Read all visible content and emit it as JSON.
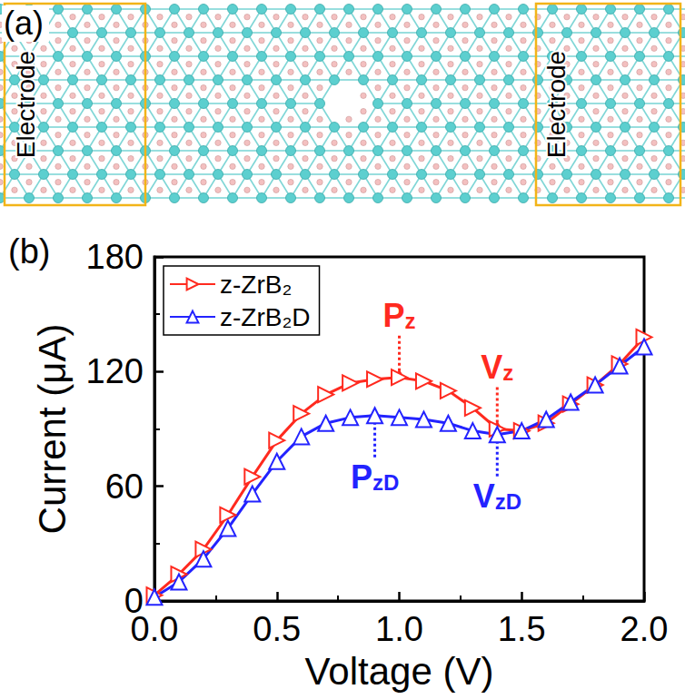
{
  "panel_a": {
    "label": "(a)",
    "electrode_labels": [
      "Electrode",
      "Electrode"
    ]
  },
  "chart_data": {
    "type": "line",
    "title": "(b)",
    "x_label": "Voltage (V)",
    "y_label": "Current (μA)",
    "x": [
      0.0,
      0.1,
      0.2,
      0.3,
      0.4,
      0.5,
      0.6,
      0.7,
      0.8,
      0.9,
      1.0,
      1.1,
      1.2,
      1.3,
      1.4,
      1.5,
      1.6,
      1.7,
      1.8,
      1.9,
      2.0
    ],
    "series": [
      {
        "name": "z-ZrB₂",
        "color": "#ff2a1f",
        "marker": "triangle_right",
        "values": [
          3,
          14,
          27,
          45,
          65,
          84,
          98,
          108,
          114,
          116,
          117,
          115,
          110,
          101,
          90,
          89,
          93,
          103,
          113,
          124,
          138
        ]
      },
      {
        "name": "z-ZrB₂D",
        "color": "#2323ff",
        "marker": "triangle_up",
        "values": [
          2,
          10,
          22,
          38,
          56,
          73,
          86,
          93,
          96,
          97,
          96,
          95,
          93,
          89,
          87,
          89,
          95,
          104,
          113,
          123,
          133
        ]
      }
    ],
    "xlim": [
      0,
      2
    ],
    "xticks": [
      {
        "value": 0,
        "label": "0.0"
      },
      0.5,
      {
        "value": 1,
        "label": "1.0"
      },
      1.5,
      {
        "value": 2,
        "label": "2.0"
      }
    ],
    "ylim": [
      0,
      180
    ],
    "yticks": [
      0,
      60,
      120,
      180
    ],
    "grid": false,
    "legend": "upper left",
    "annotations": [
      {
        "text": "P",
        "subscript": "z",
        "x": 1.0,
        "y": 117,
        "series": "z-ZrB₂"
      },
      {
        "text": "V",
        "subscript": "z",
        "x": 1.4,
        "y": 90,
        "series": "z-ZrB₂"
      },
      {
        "text": "P",
        "subscript": "zD",
        "x": 0.9,
        "y": 97,
        "series": "z-ZrB₂D"
      },
      {
        "text": "V",
        "subscript": "zD",
        "x": 1.4,
        "y": 87,
        "series": "z-ZrB₂D"
      }
    ]
  }
}
